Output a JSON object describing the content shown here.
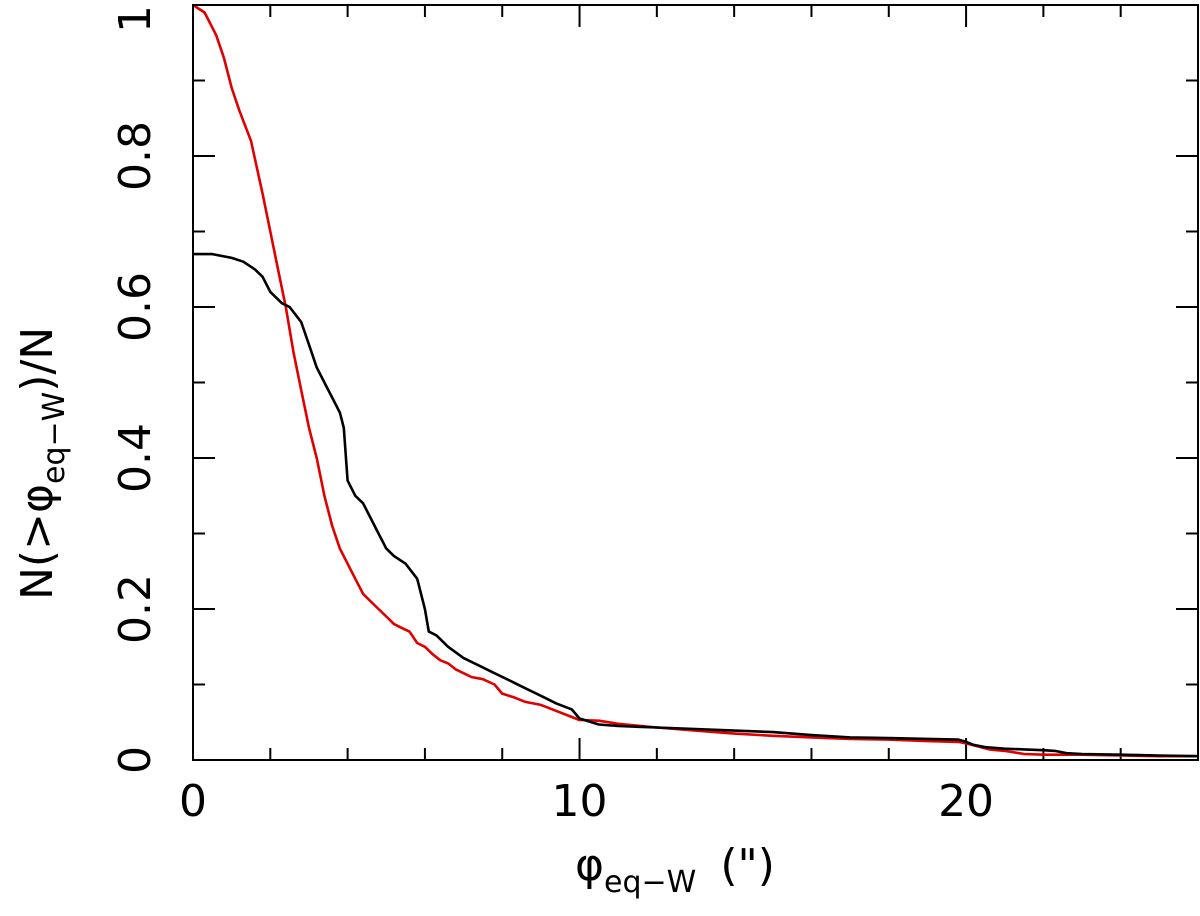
{
  "chart_data": {
    "type": "line",
    "title": "",
    "xlabel": {
      "symbol": "φ",
      "subscript": "eq−W",
      "unit": "(\")"
    },
    "ylabel": {
      "prefix": "N(>",
      "symbol": "φ",
      "subscript": "eq−W",
      "suffix": ")/N"
    },
    "xlim": [
      0,
      26
    ],
    "ylim": [
      0,
      1
    ],
    "x_ticks": [
      0,
      10,
      20
    ],
    "x_tick_labels": [
      "0",
      "10",
      "20"
    ],
    "x_minor_step": 2,
    "y_ticks": [
      0,
      0.2,
      0.4,
      0.6,
      0.8,
      1
    ],
    "y_tick_labels": [
      "0",
      "0.2",
      "0.4",
      "0.6",
      "0.8",
      "1"
    ],
    "y_minor_step": 0.1,
    "grid": false,
    "legend": "none",
    "series": [
      {
        "color": "#e00000",
        "x": [
          0,
          0.3,
          0.6,
          0.8,
          1.0,
          1.2,
          1.5,
          1.8,
          2.0,
          2.2,
          2.4,
          2.6,
          2.8,
          3.0,
          3.2,
          3.4,
          3.6,
          3.8,
          4.0,
          4.2,
          4.4,
          4.6,
          4.8,
          5.0,
          5.2,
          5.4,
          5.6,
          5.8,
          6.0,
          6.2,
          6.4,
          6.6,
          6.8,
          7.0,
          7.2,
          7.5,
          7.8,
          8.0,
          8.3,
          8.6,
          9.0,
          9.4,
          9.8,
          10.0,
          10.5,
          11.0,
          12.0,
          13.0,
          14.0,
          15.0,
          16.0,
          17.0,
          18.0,
          19.0,
          19.8,
          20.0,
          20.3,
          20.6,
          21.0,
          21.5,
          22.0,
          23.0,
          24.0,
          25.0,
          26.0
        ],
        "y": [
          1.0,
          0.99,
          0.96,
          0.93,
          0.89,
          0.86,
          0.82,
          0.75,
          0.7,
          0.65,
          0.6,
          0.54,
          0.49,
          0.44,
          0.4,
          0.35,
          0.31,
          0.28,
          0.26,
          0.24,
          0.22,
          0.21,
          0.2,
          0.19,
          0.18,
          0.175,
          0.17,
          0.155,
          0.15,
          0.14,
          0.132,
          0.128,
          0.12,
          0.115,
          0.11,
          0.107,
          0.1,
          0.088,
          0.083,
          0.077,
          0.073,
          0.065,
          0.057,
          0.053,
          0.052,
          0.048,
          0.043,
          0.039,
          0.035,
          0.032,
          0.03,
          0.028,
          0.027,
          0.025,
          0.024,
          0.022,
          0.018,
          0.014,
          0.012,
          0.008,
          0.007,
          0.007,
          0.006,
          0.005,
          0.005
        ]
      },
      {
        "color": "#000000",
        "x": [
          0,
          0.5,
          1.0,
          1.3,
          1.6,
          1.8,
          2.0,
          2.3,
          2.5,
          2.8,
          3.0,
          3.2,
          3.4,
          3.6,
          3.8,
          3.9,
          4.0,
          4.2,
          4.4,
          4.6,
          4.8,
          5.0,
          5.2,
          5.5,
          5.8,
          6.0,
          6.1,
          6.3,
          6.6,
          7.0,
          7.4,
          7.8,
          8.2,
          8.6,
          9.0,
          9.4,
          9.8,
          10.0,
          10.5,
          11.0,
          12.0,
          13.0,
          14.0,
          15.0,
          16.0,
          17.0,
          18.0,
          19.0,
          19.8,
          20.0,
          20.2,
          20.5,
          21.0,
          21.5,
          22.0,
          22.3,
          22.6,
          23.0,
          24.0,
          25.0,
          26.0
        ],
        "y": [
          0.67,
          0.67,
          0.665,
          0.66,
          0.65,
          0.64,
          0.62,
          0.605,
          0.6,
          0.58,
          0.55,
          0.52,
          0.5,
          0.48,
          0.46,
          0.44,
          0.37,
          0.35,
          0.34,
          0.32,
          0.3,
          0.28,
          0.27,
          0.26,
          0.24,
          0.2,
          0.17,
          0.165,
          0.15,
          0.135,
          0.125,
          0.115,
          0.105,
          0.095,
          0.085,
          0.075,
          0.067,
          0.055,
          0.047,
          0.045,
          0.043,
          0.041,
          0.039,
          0.037,
          0.033,
          0.03,
          0.029,
          0.028,
          0.027,
          0.024,
          0.02,
          0.017,
          0.015,
          0.014,
          0.013,
          0.012,
          0.009,
          0.008,
          0.007,
          0.006,
          0.005
        ]
      }
    ]
  }
}
